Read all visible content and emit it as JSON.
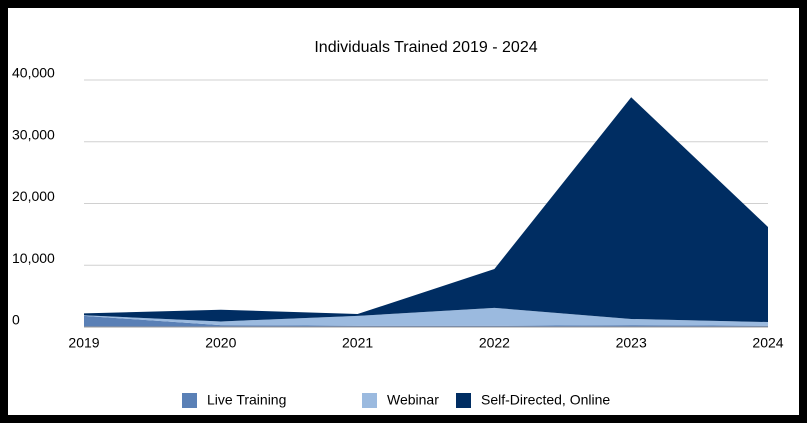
{
  "chart_data": {
    "type": "stacked_area",
    "title": "Individuals Trained 2019 - 2024",
    "categories": [
      "2019",
      "2020",
      "2021",
      "2022",
      "2023",
      "2024"
    ],
    "series": [
      {
        "name": "Live Training",
        "color": "#5a80b6",
        "values": [
          1800,
          300,
          200,
          200,
          300,
          200
        ]
      },
      {
        "name": "Webinar",
        "color": "#9bbadf",
        "values": [
          100,
          600,
          1600,
          2900,
          1000,
          600
        ]
      },
      {
        "name": "Self-Directed, Online",
        "color": "#002d62",
        "values": [
          300,
          1900,
          300,
          6300,
          35900,
          15400
        ]
      }
    ],
    "ylim": [
      0,
      40000
    ],
    "yticks": [
      0,
      {
        "value": 10000,
        "label": "10,000"
      },
      {
        "value": 20000,
        "label": "20,000"
      },
      {
        "value": 30000,
        "label": "30,000"
      },
      {
        "value": 40000,
        "label": "40,000"
      }
    ],
    "grid": true,
    "legend": "bottom"
  }
}
